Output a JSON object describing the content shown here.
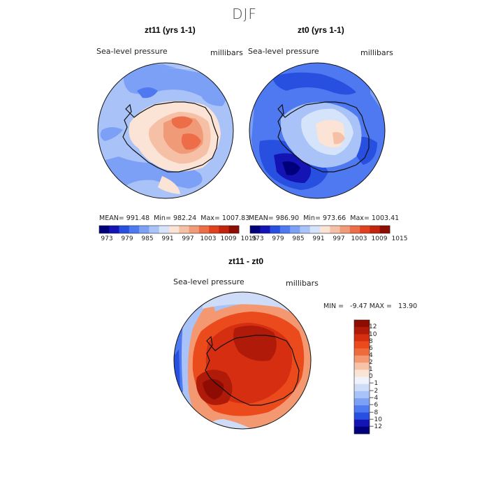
{
  "figure_title": "DJF",
  "chart_data": [
    {
      "type": "contour-map",
      "title": "zt11 (yrs 1-1)",
      "variable": "Sea-level pressure",
      "units": "millibars",
      "mean_label": "MEAN=",
      "mean": "991.48",
      "min_label": "Min=",
      "min": "982.24",
      "max_label": "Max=",
      "max": "1007.83",
      "colorbar_ticks": [
        "973",
        "979",
        "985",
        "991",
        "997",
        "1003",
        "1009",
        "1015"
      ],
      "levels": [
        970,
        973,
        976,
        979,
        982,
        985,
        988,
        991,
        994,
        997,
        1000,
        1003,
        1006,
        1009,
        1012,
        1015,
        1018
      ]
    },
    {
      "type": "contour-map",
      "title": "zt0 (yrs 1-1)",
      "variable": "Sea-level pressure",
      "units": "millibars",
      "mean_label": "MEAN=",
      "mean": "986.90",
      "min_label": "Min=",
      "min": "973.66",
      "max_label": "Max=",
      "max": "1003.41",
      "colorbar_ticks": [
        "973",
        "979",
        "985",
        "991",
        "997",
        "1003",
        "1009",
        "1015"
      ],
      "levels": [
        970,
        973,
        976,
        979,
        982,
        985,
        988,
        991,
        994,
        997,
        1000,
        1003,
        1006,
        1009,
        1012,
        1015,
        1018
      ]
    },
    {
      "type": "contour-map",
      "title": "zt11 - zt0",
      "variable": "Sea-level pressure",
      "units": "millibars",
      "minmax_text": "MIN =   -9.47 MAX =   13.90",
      "colorbar_ticks": [
        "12",
        "10",
        "8",
        "6",
        "4",
        "2",
        "1",
        "0",
        "−1",
        "−2",
        "−4",
        "−6",
        "−8",
        "−10",
        "−12"
      ]
    }
  ],
  "colors": {
    "abs_palette": [
      "#00007a",
      "#1414b4",
      "#2850e0",
      "#4f79f0",
      "#7ca0f5",
      "#a9c3f8",
      "#d6e4fb",
      "#fbe3d6",
      "#f6c0a6",
      "#f19a77",
      "#ec6d48",
      "#e0421f",
      "#c2240e",
      "#8e0c04"
    ],
    "diff_palette": [
      "#8e0c04",
      "#b01a08",
      "#d62e10",
      "#ea4a1c",
      "#f06b3c",
      "#f39870",
      "#f7c3a6",
      "#fbe3d6",
      "#eef2fb",
      "#cfdcf8",
      "#a9c3f8",
      "#7ca0f5",
      "#4f79f0",
      "#2850e0",
      "#1414b4",
      "#00007a"
    ]
  }
}
